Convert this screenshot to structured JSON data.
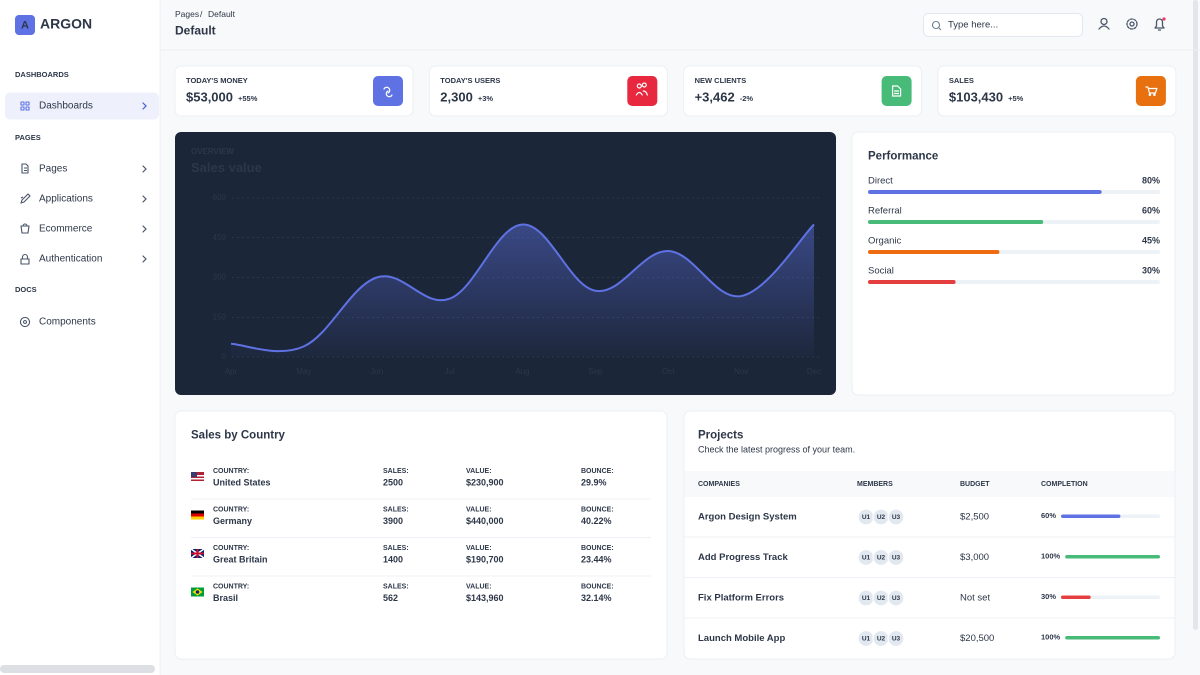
{
  "sidebar": {
    "brand_icon": "A",
    "brand": "ARGON",
    "sections": [
      {
        "title": "DASHBOARDS",
        "items": [
          "Dashboards"
        ]
      },
      {
        "title": "PAGES",
        "items": [
          "Pages",
          "Applications",
          "Ecommerce",
          "Authentication"
        ]
      },
      {
        "title": "DOCS",
        "items": [
          "Components"
        ]
      }
    ]
  },
  "header": {
    "breadcrumb": [
      "Pages",
      "Default"
    ],
    "separator": "/",
    "title": "Default",
    "search_placeholder": "Type here..."
  },
  "stats": [
    {
      "label": "TODAY'S MONEY",
      "value": "$53,000",
      "change": "+55%",
      "change_color": "#2dce89",
      "icon_color": "#5e72e4"
    },
    {
      "label": "TODAY'S USERS",
      "value": "2,300",
      "change": "+3%",
      "change_color": "#2dce89",
      "icon_color": "#e8283e"
    },
    {
      "label": "NEW CLIENTS",
      "value": "+3,462",
      "change": "-2%",
      "change_color": "#f5365c",
      "icon_color": "#48bb78"
    },
    {
      "label": "SALES",
      "value": "$103,430",
      "change": "+5%",
      "change_color": "#2dce89",
      "icon_color": "#e8700f"
    }
  ],
  "chart_data": {
    "type": "line",
    "eyebrow": "OVERVIEW",
    "title": "Sales value",
    "categories": [
      "Apr",
      "May",
      "Jun",
      "Jul",
      "Aug",
      "Sep",
      "Oct",
      "Nov",
      "Dec"
    ],
    "values": [
      50,
      40,
      300,
      220,
      500,
      250,
      400,
      230,
      500
    ],
    "ylim": [
      0,
      600
    ],
    "yticks": [
      0,
      150,
      300,
      450,
      600
    ],
    "color": "#5e72e4",
    "grid": true
  },
  "performance": {
    "title": "Performance",
    "items": [
      {
        "name": "Direct",
        "value": 80,
        "value_label": "80%",
        "color": "#5e72e4"
      },
      {
        "name": "Referral",
        "value": 60,
        "value_label": "60%",
        "color": "#48bb78"
      },
      {
        "name": "Organic",
        "value": 45,
        "value_label": "45%",
        "color": "#ed6c12"
      },
      {
        "name": "Social",
        "value": 30,
        "value_label": "30%",
        "color": "#e53e3e"
      }
    ]
  },
  "countries": {
    "title": "Sales by Country",
    "columns": [
      "COUNTRY:",
      "SALES:",
      "VALUE:",
      "BOUNCE:"
    ],
    "rows": [
      [
        "United States",
        "2500",
        "$230,900",
        "29.9%"
      ],
      [
        "Germany",
        "3900",
        "$440,000",
        "40.22%"
      ],
      [
        "Great Britain",
        "1400",
        "$190,700",
        "23.44%"
      ],
      [
        "Brasil",
        "562",
        "$143,960",
        "32.14%"
      ]
    ]
  },
  "projects": {
    "title": "Projects",
    "subtitle": "Check the latest progress of your team.",
    "columns": [
      "COMPANIES",
      "MEMBERS",
      "BUDGET",
      "COMPLETION"
    ],
    "rows": [
      {
        "company": "Argon Design System",
        "members": [
          "U1",
          "U2",
          "U3"
        ],
        "budget": "$2,500",
        "completion": 60,
        "completion_label": "60%",
        "color": "#5e72e4"
      },
      {
        "company": "Add Progress Track",
        "members": [
          "U1",
          "U2",
          "U3"
        ],
        "budget": "$3,000",
        "completion": 100,
        "completion_label": "100%",
        "color": "#48bb78"
      },
      {
        "company": "Fix Platform Errors",
        "members": [
          "U1",
          "U2",
          "U3"
        ],
        "budget": "Not set",
        "completion": 30,
        "completion_label": "30%",
        "color": "#e53e3e"
      },
      {
        "company": "Launch Mobile App",
        "members": [
          "U1",
          "U2",
          "U3"
        ],
        "budget": "$20,500",
        "completion": 100,
        "completion_label": "100%",
        "color": "#48bb78"
      }
    ]
  }
}
